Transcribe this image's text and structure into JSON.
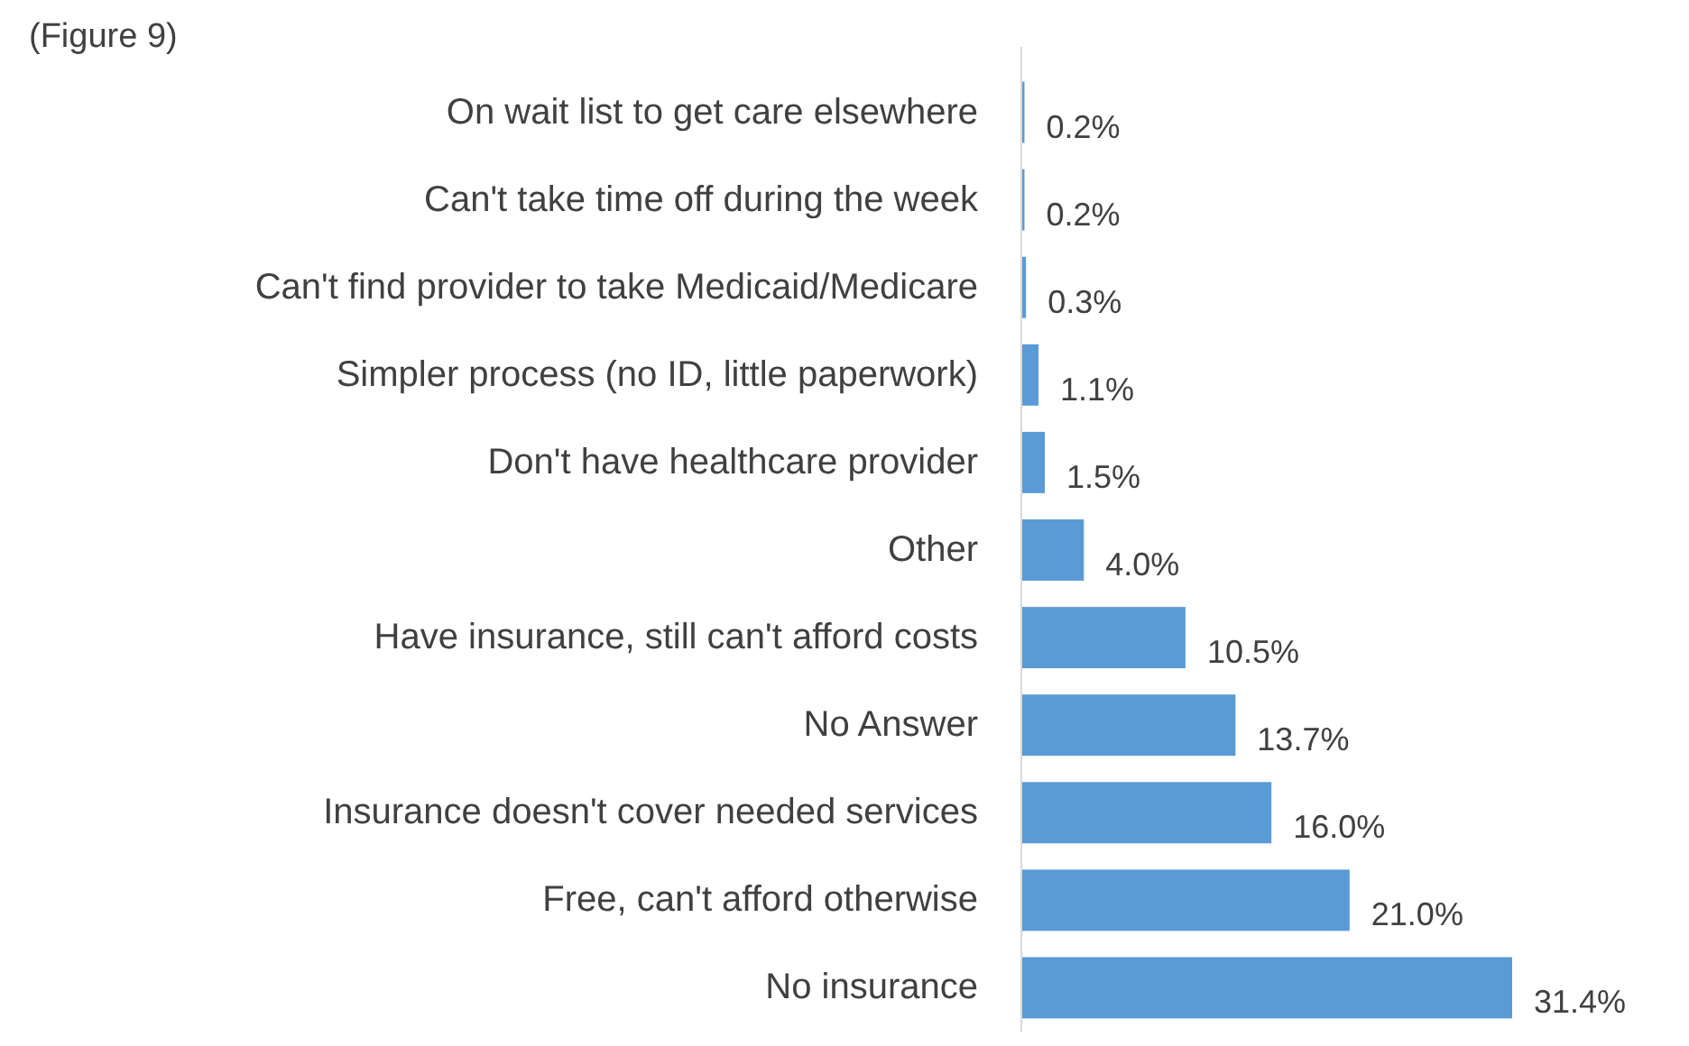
{
  "chart_data": {
    "type": "bar",
    "orientation": "horizontal",
    "title": "(Figure 9)",
    "categories": [
      "On wait list to get care elsewhere",
      "Can't take time off during the week",
      "Can't find provider to take Medicaid/Medicare",
      "Simpler process (no ID, little paperwork)",
      "Don't have healthcare provider",
      "Other",
      "Have insurance, still can't afford costs",
      "No Answer",
      "Insurance doesn't cover needed services",
      "Free, can't afford otherwise",
      "No insurance"
    ],
    "values": [
      0.2,
      0.2,
      0.3,
      1.1,
      1.5,
      4.0,
      10.5,
      13.7,
      16.0,
      21.0,
      31.4
    ],
    "value_labels": [
      "0.2%",
      "0.2%",
      "0.3%",
      "1.1%",
      "1.5%",
      "4.0%",
      "10.5%",
      "13.7%",
      "16.0%",
      "21.0%",
      "31.4%"
    ],
    "color": "#5b9bd5"
  }
}
